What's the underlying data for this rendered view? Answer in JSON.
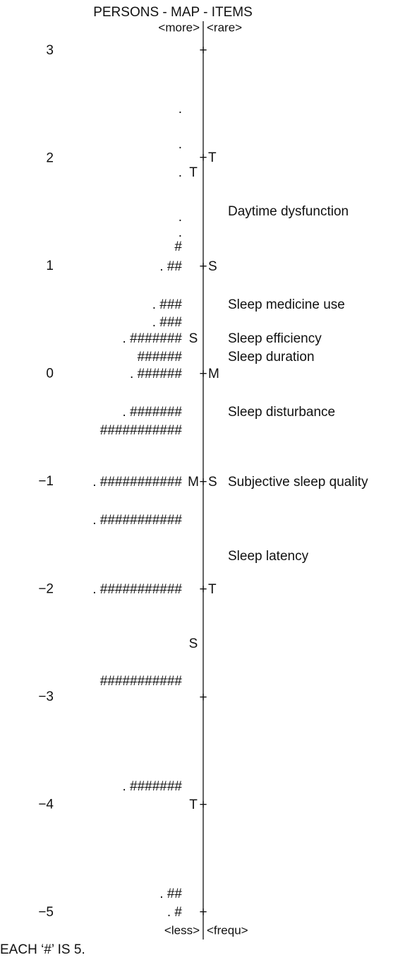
{
  "title": "PERSONS - MAP - ITEMS",
  "header": {
    "left": "<more>",
    "right": "<rare>"
  },
  "footer": {
    "left": "<less>",
    "right": "<frequ>"
  },
  "note": "EACH ‘#’ IS 5.",
  "scale": [
    "3",
    "2",
    "1",
    "0",
    "−1",
    "−2",
    "−3",
    "−4",
    "−5"
  ],
  "rows": [
    {
      "axis": "+"
    },
    {
      "persons": "."
    },
    {
      "persons": "."
    },
    {
      "axis": "+",
      "right": "T"
    },
    {
      "persons": ".",
      "left": "T"
    },
    {
      "item": "Daytime dysfunction"
    },
    {
      "persons": "."
    },
    {
      "persons": "."
    },
    {
      "persons": "#"
    },
    {
      "persons": ". ##",
      "axis": "+",
      "right": "S"
    },
    {
      "persons": ". ###",
      "item": "Sleep medicine use"
    },
    {
      "persons": ". ###"
    },
    {
      "persons": ". #######",
      "left": "S",
      "item": "Sleep efficiency"
    },
    {
      "persons": "######",
      "item": "Sleep duration"
    },
    {
      "persons": ". ######",
      "axis": "+",
      "right": "M"
    },
    {
      "persons": ". #######",
      "item": "Sleep disturbance"
    },
    {
      "persons": "###########"
    },
    {
      "persons": ". ###########",
      "left": "M",
      "axis": "+",
      "right": "S",
      "item": "Subjective sleep quality"
    },
    {
      "persons": ". ###########"
    },
    {
      "item": "Sleep latency"
    },
    {
      "persons": ". ###########",
      "axis": "+",
      "right": "T"
    },
    {
      "left": "S"
    },
    {
      "persons": "###########"
    },
    {
      "axis": "+"
    },
    {
      "persons": ". #######"
    },
    {
      "left": "T",
      "axis": "+"
    },
    {
      "persons": ". ##"
    },
    {
      "persons": ". #",
      "axis": "+"
    }
  ]
}
